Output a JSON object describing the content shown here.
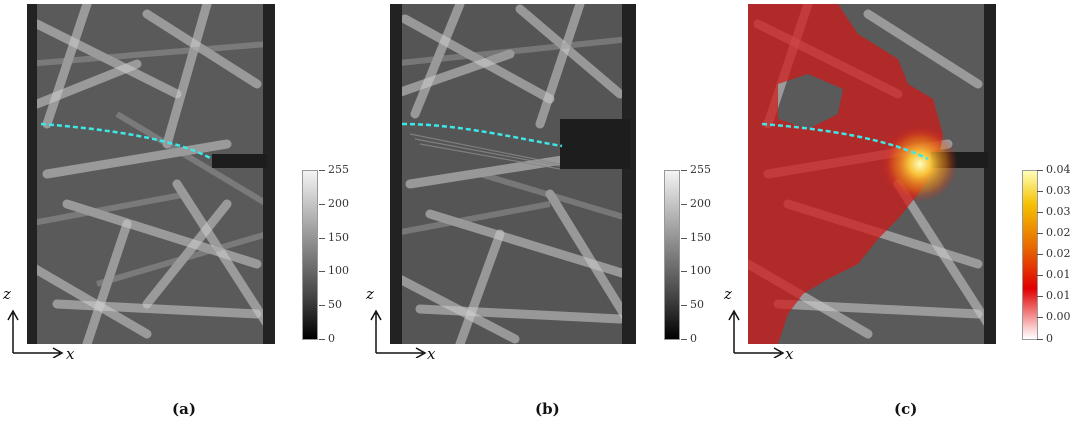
{
  "panels": [
    {
      "id": "a",
      "caption": "(a)",
      "ticks": [
        "255",
        "200",
        "150",
        "100",
        "50",
        "0"
      ]
    },
    {
      "id": "b",
      "caption": "(b)",
      "ticks": [
        "255",
        "200",
        "150",
        "100",
        "50",
        "0"
      ]
    },
    {
      "id": "c",
      "caption": "(c)",
      "ticks": [
        "0.04",
        "0.035",
        "0.03",
        "0.025",
        "0.02",
        "0.015",
        "0.01",
        "0.005",
        "0"
      ]
    }
  ],
  "axes": {
    "vertical": "z",
    "horizontal": "x"
  },
  "colors": {
    "crack_path": "#3fe6e6",
    "damage": "#d21818",
    "hotspot": "#ffe66b"
  }
}
